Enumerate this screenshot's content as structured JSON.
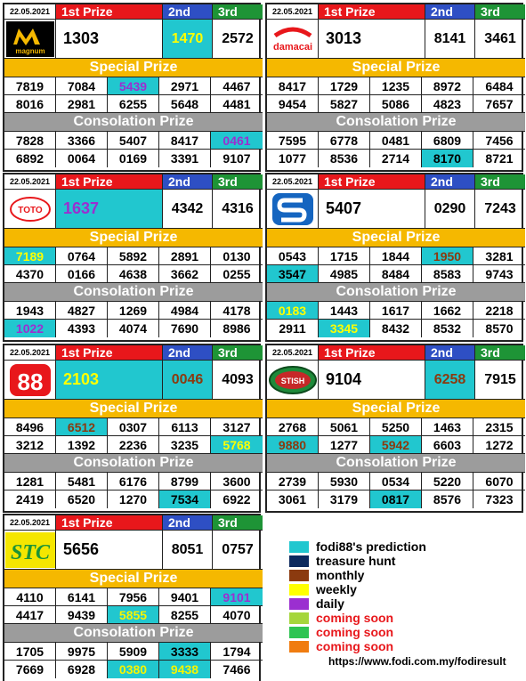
{
  "headers": {
    "first": "1st Prize",
    "second": "2nd",
    "third": "3rd",
    "special": "Special Prize",
    "consolation": "Consolation Prize"
  },
  "boards": [
    {
      "id": "magnum",
      "date": "22.05.2021",
      "logo": "magnum-logo",
      "first": "1303",
      "second": "1470",
      "third": "2572",
      "special": [
        [
          "7819",
          "7084",
          "5439",
          "2971",
          "4467"
        ],
        [
          "8016",
          "2981",
          "6255",
          "5648",
          "4481"
        ]
      ],
      "consolation": [
        [
          "7828",
          "3366",
          "5407",
          "8417",
          "0461"
        ],
        [
          "6892",
          "0064",
          "0169",
          "3391",
          "9107"
        ]
      ]
    },
    {
      "id": "damacai",
      "date": "22.05.2021",
      "logo": "damacai-logo",
      "logo_text": "damacai",
      "first": "3013",
      "second": "8141",
      "third": "3461",
      "special": [
        [
          "8417",
          "1729",
          "1235",
          "8972",
          "6484"
        ],
        [
          "9454",
          "5827",
          "5086",
          "4823",
          "7657"
        ]
      ],
      "consolation": [
        [
          "7595",
          "6778",
          "0481",
          "6809",
          "7456"
        ],
        [
          "1077",
          "8536",
          "2714",
          "8170",
          "8721"
        ]
      ]
    },
    {
      "id": "toto",
      "date": "22.05.2021",
      "logo": "toto-logo",
      "logo_text": "TOTO",
      "first": "1637",
      "second": "4342",
      "third": "4316",
      "special": [
        [
          "7189",
          "0764",
          "5892",
          "2891",
          "0130"
        ],
        [
          "4370",
          "0166",
          "4638",
          "3662",
          "0255"
        ]
      ],
      "consolation": [
        [
          "1943",
          "4827",
          "1269",
          "4984",
          "4178"
        ],
        [
          "1022",
          "4393",
          "4074",
          "7690",
          "8986"
        ]
      ]
    },
    {
      "id": "singapore",
      "date": "22.05.2021",
      "logo": "singapore-pools-logo",
      "first": "5407",
      "second": "0290",
      "third": "7243",
      "special": [
        [
          "0543",
          "1715",
          "1844",
          "1950",
          "3281"
        ],
        [
          "3547",
          "4985",
          "8484",
          "8583",
          "9743"
        ]
      ],
      "consolation": [
        [
          "0183",
          "1443",
          "1617",
          "1662",
          "2218"
        ],
        [
          "2911",
          "3345",
          "8432",
          "8532",
          "8570"
        ]
      ]
    },
    {
      "id": "88",
      "date": "22.05.2021",
      "logo": "88-logo",
      "logo_text": "88",
      "first": "2103",
      "second": "0046",
      "third": "4093",
      "special": [
        [
          "8496",
          "6512",
          "0307",
          "6113",
          "3127"
        ],
        [
          "3212",
          "1392",
          "2236",
          "3235",
          "5768"
        ]
      ],
      "consolation": [
        [
          "1281",
          "5481",
          "6176",
          "8799",
          "3600"
        ],
        [
          "2419",
          "6520",
          "1270",
          "7534",
          "6922"
        ]
      ]
    },
    {
      "id": "sabah",
      "date": "22.05.2021",
      "logo": "sabah-logo",
      "logo_text": "STISH",
      "first": "9104",
      "second": "6258",
      "third": "7915",
      "special": [
        [
          "2768",
          "5061",
          "5250",
          "1463",
          "2315"
        ],
        [
          "9880",
          "1277",
          "5942",
          "6603",
          "1272"
        ]
      ],
      "consolation": [
        [
          "2739",
          "5930",
          "0534",
          "5220",
          "6070"
        ],
        [
          "3061",
          "3179",
          "0817",
          "8576",
          "7323"
        ]
      ]
    },
    {
      "id": "stc",
      "date": "22.05.2021",
      "logo": "stc-logo",
      "logo_text": "STC",
      "first": "5656",
      "second": "8051",
      "third": "0757",
      "special": [
        [
          "4110",
          "6141",
          "7956",
          "9401",
          "9101"
        ],
        [
          "4417",
          "9439",
          "5855",
          "8255",
          "4070"
        ]
      ],
      "consolation": [
        [
          "1705",
          "9975",
          "5909",
          "3333",
          "1794"
        ],
        [
          "7669",
          "6928",
          "0380",
          "9438",
          "7466"
        ]
      ]
    }
  ],
  "legend": [
    {
      "color": "#21c7cf",
      "label": "fodi88's prediction",
      "red": false
    },
    {
      "color": "#0d2a5e",
      "label": "treasure hunt",
      "red": false
    },
    {
      "color": "#8b3a0f",
      "label": "monthly",
      "red": false
    },
    {
      "color": "#ffff00",
      "label": "weekly",
      "red": false
    },
    {
      "color": "#9b2fd0",
      "label": "daily",
      "red": false
    },
    {
      "color": "#a5d63c",
      "label": "coming soon",
      "red": true
    },
    {
      "color": "#2ec452",
      "label": "coming soon",
      "red": true
    },
    {
      "color": "#f07c10",
      "label": "coming soon",
      "red": true
    }
  ],
  "url": "https://www.fodi.com.my/fodiresult"
}
